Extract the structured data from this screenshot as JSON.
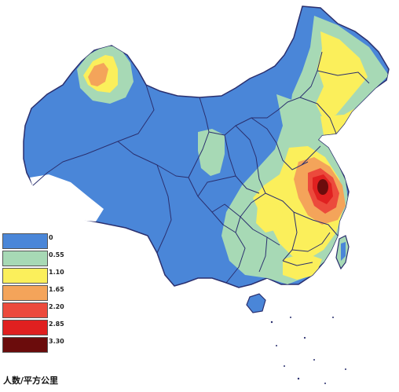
{
  "legend": {
    "items": [
      {
        "label": "0",
        "color": "#4a86d8"
      },
      {
        "label": "0.55",
        "color": "#a7d9b5"
      },
      {
        "label": "1.10",
        "color": "#fbef5b"
      },
      {
        "label": "1.65",
        "color": "#f4a45a"
      },
      {
        "label": "2.20",
        "color": "#ec4a3c"
      },
      {
        "label": "2.85",
        "color": "#e02020"
      },
      {
        "label": "3.30",
        "color": "#6b0c0c"
      }
    ],
    "unit": "人数/平方公里"
  },
  "colors": {
    "base": "#4a86d8",
    "border": "#2a2f6e"
  }
}
